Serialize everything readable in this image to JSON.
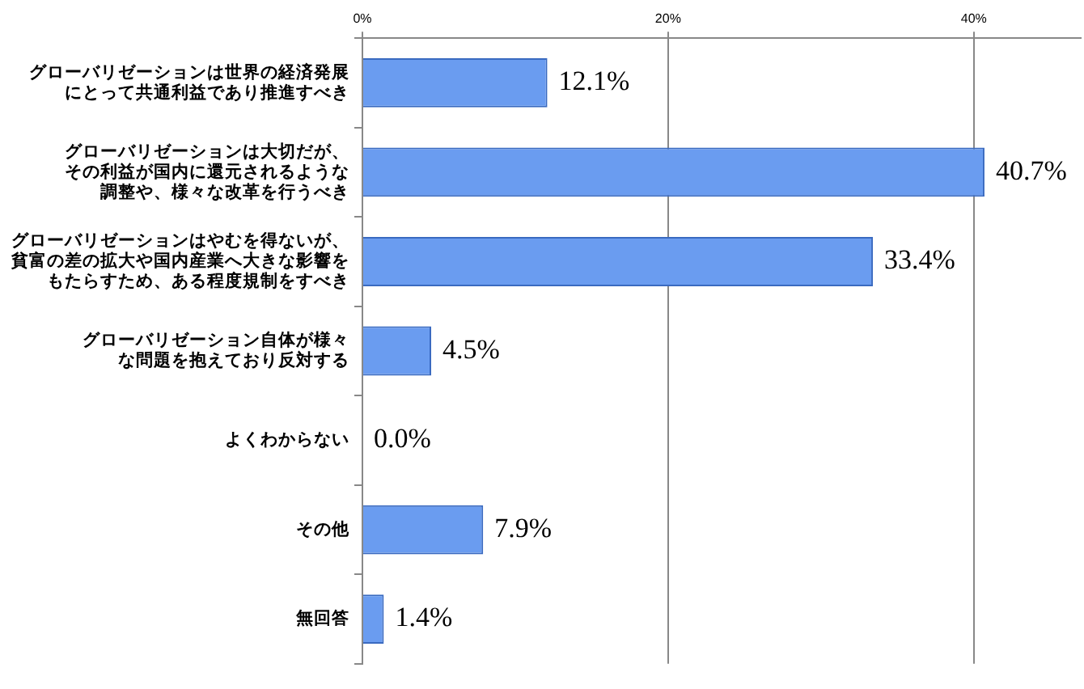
{
  "chart_data": {
    "type": "bar",
    "orientation": "horizontal",
    "categories": [
      "グローバリゼーションは世界の経済発展にとって共通利益であり推進すべき",
      "グローバリゼーションは大切だが、その利益が国内に還元されるような調整や、様々な改革を行うべき",
      "グローバリゼーションはやむを得ないが、貧富の差の拡大や国内産業へ大きな影響をもたらすため、ある程度規制をすべき",
      "グローバリゼーション自体が様々な問題を抱えており反対する",
      "よくわからない",
      "その他",
      "無回答"
    ],
    "values": [
      12.1,
      40.7,
      33.4,
      4.5,
      0.0,
      7.9,
      1.4
    ],
    "value_labels": [
      "12.1%",
      "40.7%",
      "33.4%",
      "4.5%",
      "0.0%",
      "7.9%",
      "1.4%"
    ],
    "color": "#6a9cf0",
    "xlim": [
      0,
      47
    ],
    "xticks": [
      {
        "value": 0,
        "label": "0%"
      },
      {
        "value": 20,
        "label": "20%"
      },
      {
        "value": 40,
        "label": "40%"
      }
    ],
    "grid": "x",
    "legend": false
  }
}
